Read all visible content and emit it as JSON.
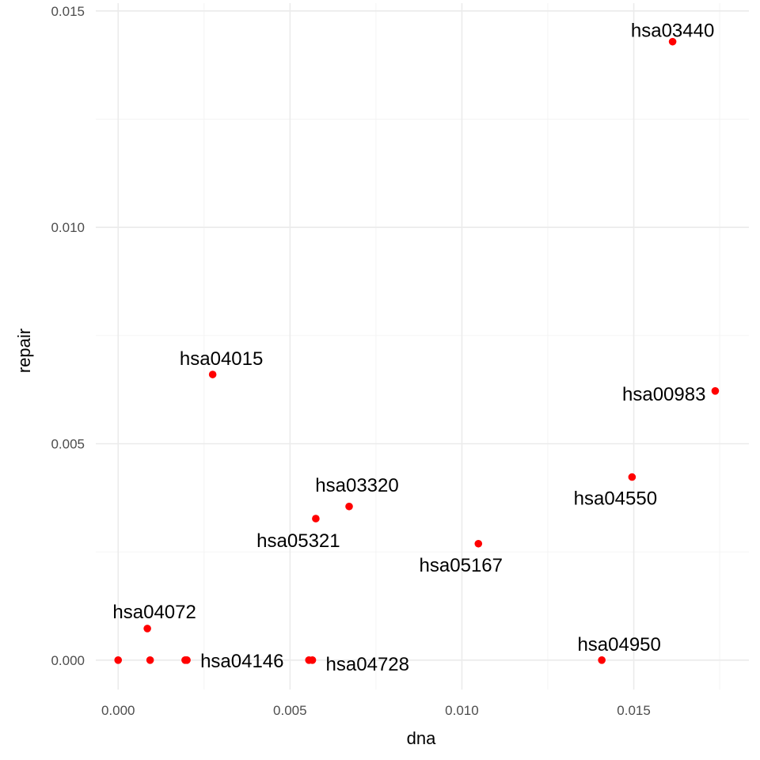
{
  "chart_data": {
    "type": "scatter",
    "title": "",
    "xlabel": "dna",
    "ylabel": "repair",
    "xlim": [
      -0.00065,
      0.01835
    ],
    "ylim": [
      -0.00068,
      0.01518
    ],
    "x_ticks": [
      0.0,
      0.005,
      0.01,
      0.015
    ],
    "x_tick_labels": [
      "0.000",
      "0.005",
      "0.010",
      "0.015"
    ],
    "y_ticks": [
      0.0,
      0.005,
      0.01,
      0.015
    ],
    "y_tick_labels": [
      "0.000",
      "0.005",
      "0.010",
      "0.015"
    ],
    "grid": true,
    "point_color": "#ff0000",
    "points": [
      {
        "x": 0.0,
        "y": 0.0,
        "label": ""
      },
      {
        "x": 0.00093,
        "y": 0.0,
        "label": ""
      },
      {
        "x": 0.00195,
        "y": 0.0,
        "label": ""
      },
      {
        "x": 0.002,
        "y": 0.0,
        "label": "hsa04146"
      },
      {
        "x": 0.00085,
        "y": 0.00073,
        "label": "hsa04072"
      },
      {
        "x": 0.00555,
        "y": 0.0,
        "label": ""
      },
      {
        "x": 0.00565,
        "y": 0.0,
        "label": "hsa04728"
      },
      {
        "x": 0.00275,
        "y": 0.0066,
        "label": "hsa04015"
      },
      {
        "x": 0.00575,
        "y": 0.00327,
        "label": "hsa05321"
      },
      {
        "x": 0.00672,
        "y": 0.00355,
        "label": "hsa03320"
      },
      {
        "x": 0.01048,
        "y": 0.00269,
        "label": "hsa05167"
      },
      {
        "x": 0.01407,
        "y": 0.0,
        "label": "hsa04950"
      },
      {
        "x": 0.01495,
        "y": 0.00423,
        "label": "hsa04550"
      },
      {
        "x": 0.01737,
        "y": 0.00622,
        "label": "hsa00983"
      },
      {
        "x": 0.01613,
        "y": 0.01429,
        "label": "hsa03440"
      }
    ]
  }
}
